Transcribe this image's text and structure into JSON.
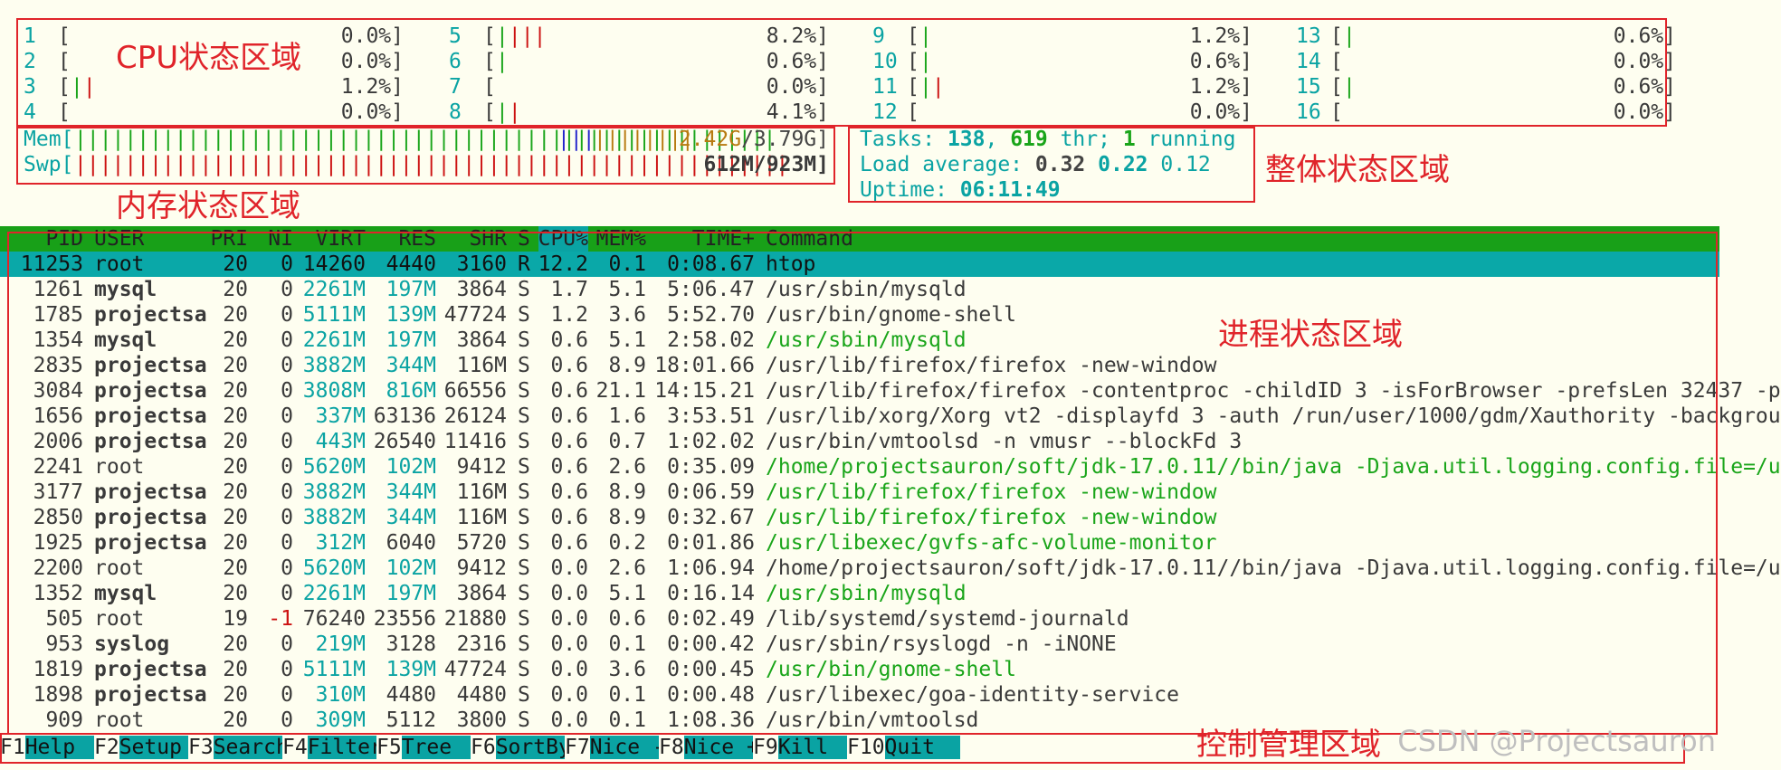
{
  "annotations": {
    "cpu": "CPU状态区域",
    "mem": "内存状态区域",
    "overall": "整体状态区域",
    "proc": "进程状态区域",
    "ctrl": "控制管理区域"
  },
  "cpus": [
    {
      "id": "1",
      "bar": "",
      "val": "0.0%]"
    },
    {
      "id": "2",
      "bar": "",
      "val": "0.0%]"
    },
    {
      "id": "3",
      "bar": "||",
      "val": "1.2%]"
    },
    {
      "id": "4",
      "bar": "",
      "val": "0.0%]"
    },
    {
      "id": "5",
      "bar": "||||",
      "val": "8.2%]"
    },
    {
      "id": "6",
      "bar": "|",
      "val": "0.6%]"
    },
    {
      "id": "7",
      "bar": "",
      "val": "0.0%]"
    },
    {
      "id": "8",
      "bar": "||",
      "val": "4.1%]"
    },
    {
      "id": "9",
      "bar": "|",
      "val": "1.2%]"
    },
    {
      "id": "10",
      "bar": "|",
      "val": "0.6%]"
    },
    {
      "id": "11",
      "bar": "||",
      "val": "1.2%]"
    },
    {
      "id": "12",
      "bar": "",
      "val": "0.0%]"
    },
    {
      "id": "13",
      "bar": "|",
      "val": "0.6%]"
    },
    {
      "id": "14",
      "bar": "",
      "val": "0.0%]"
    },
    {
      "id": "15",
      "bar": "|",
      "val": "0.6%]"
    },
    {
      "id": "16",
      "bar": "",
      "val": "0.0%]"
    }
  ],
  "mem": {
    "label": "Mem[",
    "bar_green": "||||||||||||||||||||||||||||||||||||||||||||||||||||||||",
    "bar_blue": "|||",
    "bar_orange": "||||||||",
    "used": "2.42G",
    "total": "/3.79G]"
  },
  "swp": {
    "label": "Swp[",
    "bar": "|||||||||||||||||||||||||||||||||||||||||||||||||||||||||",
    "value": "612M/923M]"
  },
  "summary": {
    "tasks_label": "Tasks: ",
    "tasks": "138",
    "sep1": ", ",
    "thr": "619",
    "thr_label": " thr; ",
    "running": "1",
    "running_label": " running",
    "load_label": "Load average: ",
    "load1": "0.32",
    "load5": "0.22",
    "load15": "0.12",
    "uptime_label": "Uptime: ",
    "uptime": "06:11:49"
  },
  "columns": [
    "PID",
    "USER",
    "PRI",
    "NI",
    "VIRT",
    "RES",
    "SHR",
    "S",
    "CPU%",
    "MEM%",
    "TIME+",
    "Command"
  ],
  "processes": [
    {
      "pid": "11253",
      "user": "root",
      "pri": "20",
      "ni": "0",
      "virt": "14260",
      "res": "4440",
      "shr": "3160",
      "s": "R",
      "cpu": "12.2",
      "mem": "0.1",
      "time": "0:08.67",
      "cmd": "htop",
      "sel": true
    },
    {
      "pid": "1261",
      "user": "mysql",
      "pri": "20",
      "ni": "0",
      "virt": "2261M",
      "res": "197M",
      "shr": "3864",
      "s": "S",
      "cpu": "1.7",
      "mem": "5.1",
      "time": "5:06.47",
      "cmd": "/usr/sbin/mysqld"
    },
    {
      "pid": "1785",
      "user": "projectsa",
      "pri": "20",
      "ni": "0",
      "virt": "5111M",
      "res": "139M",
      "shr": "47724",
      "s": "S",
      "cpu": "1.2",
      "mem": "3.6",
      "time": "5:52.70",
      "cmd": "/usr/bin/gnome-shell"
    },
    {
      "pid": "1354",
      "user": "mysql",
      "pri": "20",
      "ni": "0",
      "virt": "2261M",
      "res": "197M",
      "shr": "3864",
      "s": "S",
      "cpu": "0.6",
      "mem": "5.1",
      "time": "2:58.02",
      "cmd": "/usr/sbin/mysqld",
      "green": true
    },
    {
      "pid": "2835",
      "user": "projectsa",
      "pri": "20",
      "ni": "0",
      "virt": "3882M",
      "res": "344M",
      "shr": "116M",
      "s": "S",
      "cpu": "0.6",
      "mem": "8.9",
      "time": "18:01.66",
      "cmd": "/usr/lib/firefox/firefox -new-window"
    },
    {
      "pid": "3084",
      "user": "projectsa",
      "pri": "20",
      "ni": "0",
      "virt": "3808M",
      "res": "816M",
      "shr": "66556",
      "s": "S",
      "cpu": "0.6",
      "mem": "21.1",
      "time": "14:15.21",
      "cmd": "/usr/lib/firefox/firefox -contentproc -childID 3 -isForBrowser -prefsLen 32437 -p"
    },
    {
      "pid": "1656",
      "user": "projectsa",
      "pri": "20",
      "ni": "0",
      "virt": "337M",
      "res": "63136",
      "shr": "26124",
      "s": "S",
      "cpu": "0.6",
      "mem": "1.6",
      "time": "3:53.51",
      "cmd": "/usr/lib/xorg/Xorg vt2 -displayfd 3 -auth /run/user/1000/gdm/Xauthority -backgrou"
    },
    {
      "pid": "2006",
      "user": "projectsa",
      "pri": "20",
      "ni": "0",
      "virt": "443M",
      "res": "26540",
      "shr": "11416",
      "s": "S",
      "cpu": "0.6",
      "mem": "0.7",
      "time": "1:02.02",
      "cmd": "/usr/bin/vmtoolsd -n vmusr --blockFd 3"
    },
    {
      "pid": "2241",
      "user": "root",
      "pri": "20",
      "ni": "0",
      "virt": "5620M",
      "res": "102M",
      "shr": "9412",
      "s": "S",
      "cpu": "0.6",
      "mem": "2.6",
      "time": "0:35.09",
      "cmd": "/home/projectsauron/soft/jdk-17.0.11//bin/java -Djava.util.logging.config.file=/u",
      "green": true,
      "normaluser": true
    },
    {
      "pid": "3177",
      "user": "projectsa",
      "pri": "20",
      "ni": "0",
      "virt": "3882M",
      "res": "344M",
      "shr": "116M",
      "s": "S",
      "cpu": "0.6",
      "mem": "8.9",
      "time": "0:06.59",
      "cmd": "/usr/lib/firefox/firefox -new-window",
      "green": true
    },
    {
      "pid": "2850",
      "user": "projectsa",
      "pri": "20",
      "ni": "0",
      "virt": "3882M",
      "res": "344M",
      "shr": "116M",
      "s": "S",
      "cpu": "0.6",
      "mem": "8.9",
      "time": "0:32.67",
      "cmd": "/usr/lib/firefox/firefox -new-window",
      "green": true
    },
    {
      "pid": "1925",
      "user": "projectsa",
      "pri": "20",
      "ni": "0",
      "virt": "312M",
      "res": "6040",
      "shr": "5720",
      "s": "S",
      "cpu": "0.6",
      "mem": "0.2",
      "time": "0:01.86",
      "cmd": "/usr/libexec/gvfs-afc-volume-monitor",
      "green": true
    },
    {
      "pid": "2200",
      "user": "root",
      "pri": "20",
      "ni": "0",
      "virt": "5620M",
      "res": "102M",
      "shr": "9412",
      "s": "S",
      "cpu": "0.0",
      "mem": "2.6",
      "time": "1:06.94",
      "cmd": "/home/projectsauron/soft/jdk-17.0.11//bin/java -Djava.util.logging.config.file=/u",
      "normaluser": true
    },
    {
      "pid": "1352",
      "user": "mysql",
      "pri": "20",
      "ni": "0",
      "virt": "2261M",
      "res": "197M",
      "shr": "3864",
      "s": "S",
      "cpu": "0.0",
      "mem": "5.1",
      "time": "0:16.14",
      "cmd": "/usr/sbin/mysqld",
      "green": true
    },
    {
      "pid": "505",
      "user": "root",
      "pri": "19",
      "ni": "-1",
      "virt": "76240",
      "res": "23556",
      "shr": "21880",
      "s": "S",
      "cpu": "0.0",
      "mem": "0.6",
      "time": "0:02.49",
      "cmd": "/lib/systemd/systemd-journald",
      "normaluser": true,
      "nired": true
    },
    {
      "pid": "953",
      "user": "syslog",
      "pri": "20",
      "ni": "0",
      "virt": "219M",
      "res": "3128",
      "shr": "2316",
      "s": "S",
      "cpu": "0.0",
      "mem": "0.1",
      "time": "0:00.42",
      "cmd": "/usr/sbin/rsyslogd -n -iNONE"
    },
    {
      "pid": "1819",
      "user": "projectsa",
      "pri": "20",
      "ni": "0",
      "virt": "5111M",
      "res": "139M",
      "shr": "47724",
      "s": "S",
      "cpu": "0.0",
      "mem": "3.6",
      "time": "0:00.45",
      "cmd": "/usr/bin/gnome-shell",
      "green": true
    },
    {
      "pid": "1898",
      "user": "projectsa",
      "pri": "20",
      "ni": "0",
      "virt": "310M",
      "res": "4480",
      "shr": "4480",
      "s": "S",
      "cpu": "0.0",
      "mem": "0.1",
      "time": "0:00.48",
      "cmd": "/usr/libexec/goa-identity-service"
    },
    {
      "pid": "909",
      "user": "root",
      "pri": "20",
      "ni": "0",
      "virt": "309M",
      "res": "5112",
      "shr": "3800",
      "s": "S",
      "cpu": "0.0",
      "mem": "0.1",
      "time": "1:08.36",
      "cmd": "/usr/bin/vmtoolsd",
      "normaluser": true
    }
  ],
  "fkeys": [
    {
      "num": "F1",
      "label": "Help  "
    },
    {
      "num": "F2",
      "label": "Setup "
    },
    {
      "num": "F3",
      "label": "Search"
    },
    {
      "num": "F4",
      "label": "Filter"
    },
    {
      "num": "F5",
      "label": "Tree  "
    },
    {
      "num": "F6",
      "label": "SortBy"
    },
    {
      "num": "F7",
      "label": "Nice -"
    },
    {
      "num": "F8",
      "label": "Nice +"
    },
    {
      "num": "F9",
      "label": "Kill  "
    },
    {
      "num": "F10",
      "label": "Quit  "
    }
  ],
  "watermark": "CSDN @Projectsauron"
}
